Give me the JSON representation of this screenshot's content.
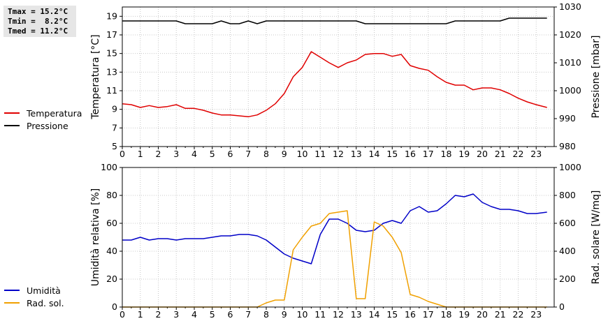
{
  "stats": {
    "tmax": "Tmax = 15.2°C",
    "tmin": "Tmin =  8.2°C",
    "tmed": "Tmed = 11.2°C"
  },
  "legend_top": [
    {
      "label": "Temperatura",
      "color": "#e00000"
    },
    {
      "label": "Pressione",
      "color": "#000000"
    }
  ],
  "legend_bottom": [
    {
      "label": "Umidità",
      "color": "#0000c8"
    },
    {
      "label": "Rad. sol.",
      "color": "#f0a000"
    }
  ],
  "chart_data": [
    {
      "type": "line",
      "xlim": [
        0,
        24
      ],
      "xticks": [
        "0",
        "1",
        "2",
        "3",
        "4",
        "5",
        "6",
        "7",
        "8",
        "9",
        "10",
        "11",
        "12",
        "13",
        "14",
        "15",
        "16",
        "17",
        "18",
        "19",
        "20",
        "21",
        "22",
        "23"
      ],
      "ylabel_left": "Temperatura [°C]",
      "ylabel_right": "Pressione [mbar]",
      "ylim_left": [
        5,
        20
      ],
      "yticks_left": [
        5,
        7,
        9,
        11,
        13,
        15,
        17,
        19
      ],
      "ylim_right": [
        980,
        1030
      ],
      "yticks_right": [
        980,
        990,
        1000,
        1010,
        1020,
        1030
      ],
      "grid": true,
      "series": [
        {
          "name": "Temperatura",
          "axis": "left",
          "color": "#e00000",
          "x": [
            0,
            0.5,
            1,
            1.5,
            2,
            2.5,
            3,
            3.5,
            4,
            4.5,
            5,
            5.5,
            6,
            6.5,
            7,
            7.5,
            8,
            8.5,
            9,
            9.5,
            10,
            10.5,
            11,
            11.5,
            12,
            12.5,
            13,
            13.5,
            14,
            14.5,
            15,
            15.5,
            16,
            16.5,
            17,
            17.5,
            18,
            18.5,
            19,
            19.5,
            20,
            20.5,
            21,
            21.5,
            22,
            22.5,
            23,
            23.6
          ],
          "y": [
            9.6,
            9.5,
            9.2,
            9.4,
            9.2,
            9.3,
            9.5,
            9.1,
            9.1,
            8.9,
            8.6,
            8.4,
            8.4,
            8.3,
            8.2,
            8.4,
            8.9,
            9.6,
            10.7,
            12.5,
            13.5,
            15.2,
            14.6,
            14.0,
            13.5,
            14.0,
            14.3,
            14.9,
            15.0,
            15.0,
            14.7,
            14.9,
            13.7,
            13.4,
            13.2,
            12.5,
            11.9,
            11.6,
            11.6,
            11.1,
            11.3,
            11.3,
            11.1,
            10.7,
            10.2,
            9.8,
            9.5,
            9.2
          ]
        },
        {
          "name": "Pressione",
          "axis": "right",
          "color": "#000000",
          "x": [
            0,
            1,
            2,
            3,
            3.5,
            4,
            5,
            5.5,
            6,
            6.5,
            7,
            7.5,
            8,
            9,
            10,
            11,
            12,
            13,
            13.5,
            14,
            15,
            16,
            17,
            18,
            18.5,
            19,
            20,
            21,
            21.5,
            22,
            23,
            23.6
          ],
          "y": [
            1025,
            1025,
            1025,
            1025,
            1024,
            1024,
            1024,
            1025,
            1024,
            1024,
            1025,
            1024,
            1025,
            1025,
            1025,
            1025,
            1025,
            1025,
            1024,
            1024,
            1024,
            1024,
            1024,
            1024,
            1025,
            1025,
            1025,
            1025,
            1026,
            1026,
            1026,
            1026
          ]
        }
      ]
    },
    {
      "type": "line",
      "xlim": [
        0,
        24
      ],
      "xticks": [
        "0",
        "1",
        "2",
        "3",
        "4",
        "5",
        "6",
        "7",
        "8",
        "9",
        "10",
        "11",
        "12",
        "13",
        "14",
        "15",
        "16",
        "17",
        "18",
        "19",
        "20",
        "21",
        "22",
        "23"
      ],
      "ylabel_left": "Umidità relativa [%]",
      "ylabel_right": "Rad. solare [W/mq]",
      "ylim_left": [
        0,
        100
      ],
      "yticks_left": [
        0,
        20,
        40,
        60,
        80,
        100
      ],
      "ylim_right": [
        0,
        1000
      ],
      "yticks_right": [
        0,
        200,
        400,
        600,
        800,
        1000
      ],
      "grid": true,
      "series": [
        {
          "name": "Umidità",
          "axis": "left",
          "color": "#0000c8",
          "x": [
            0,
            0.5,
            1,
            1.5,
            2,
            2.5,
            3,
            3.5,
            4,
            4.5,
            5,
            5.5,
            6,
            6.5,
            7,
            7.5,
            8,
            8.5,
            9,
            9.5,
            10,
            10.5,
            11,
            11.5,
            12,
            12.5,
            13,
            13.5,
            14,
            14.5,
            15,
            15.5,
            16,
            16.5,
            17,
            17.5,
            18,
            18.5,
            19,
            19.5,
            20,
            20.5,
            21,
            21.5,
            22,
            22.5,
            23,
            23.6
          ],
          "y": [
            48,
            48,
            50,
            48,
            49,
            49,
            48,
            49,
            49,
            49,
            50,
            51,
            51,
            52,
            52,
            51,
            48,
            43,
            38,
            35,
            33,
            31,
            52,
            63,
            63,
            60,
            55,
            54,
            55,
            60,
            62,
            60,
            69,
            72,
            68,
            69,
            74,
            80,
            79,
            81,
            75,
            72,
            70,
            70,
            69,
            67,
            67,
            68
          ]
        },
        {
          "name": "Rad. sol.",
          "axis": "right",
          "color": "#f0a000",
          "x": [
            0,
            1,
            2,
            3,
            4,
            5,
            6,
            7,
            7.5,
            8,
            8.5,
            9,
            9.5,
            10,
            10.5,
            11,
            11.5,
            12,
            12.5,
            13,
            13.5,
            14,
            14.5,
            15,
            15.5,
            16,
            16.5,
            17,
            17.5,
            18,
            19,
            20,
            21,
            22,
            23,
            23.6
          ],
          "y": [
            0,
            0,
            0,
            0,
            0,
            0,
            0,
            0,
            0,
            30,
            50,
            50,
            410,
            500,
            580,
            600,
            670,
            680,
            690,
            60,
            60,
            610,
            580,
            500,
            390,
            90,
            70,
            40,
            20,
            0,
            0,
            0,
            0,
            0,
            0,
            0
          ]
        }
      ]
    }
  ]
}
